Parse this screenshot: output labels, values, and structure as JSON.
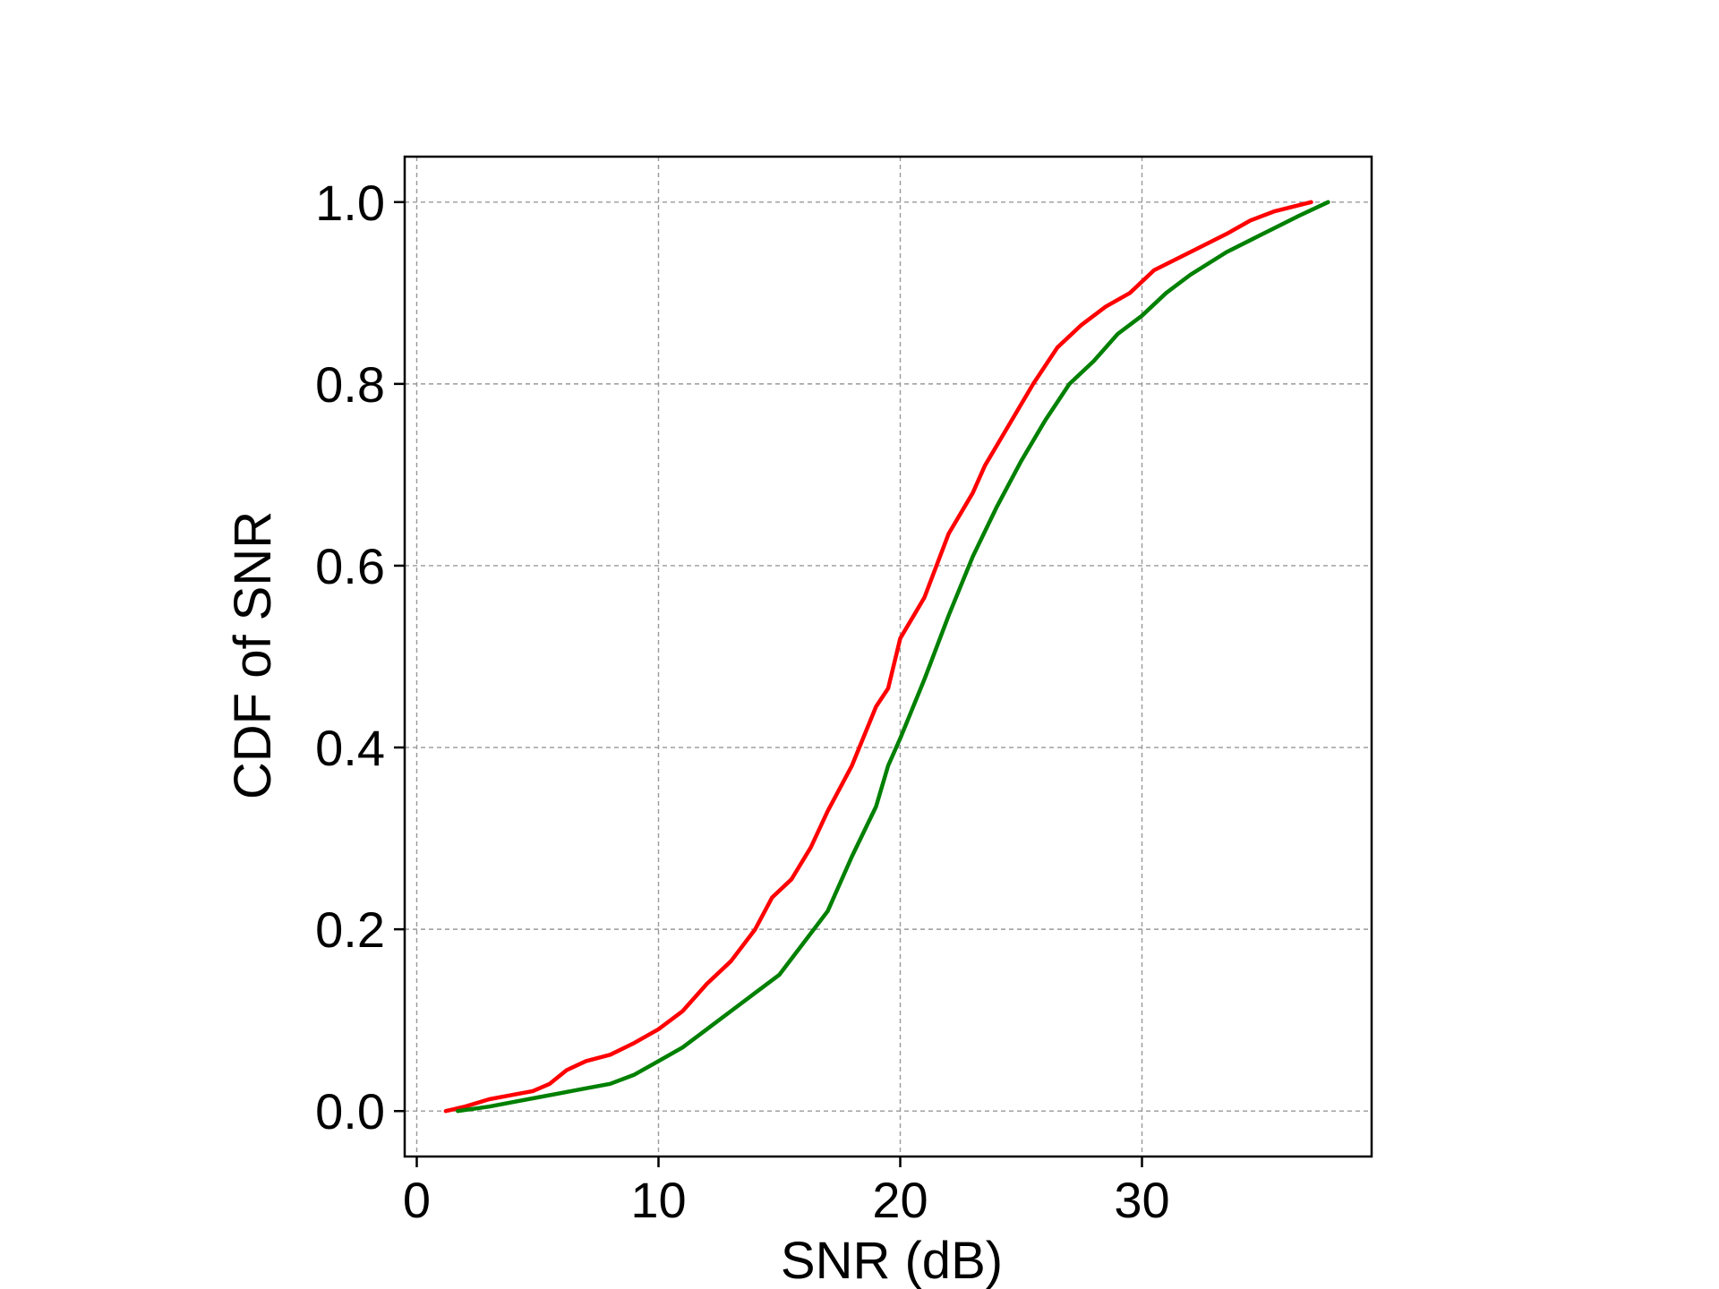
{
  "chart_data": {
    "type": "line",
    "title": "",
    "xlabel": "SNR (dB)",
    "ylabel": "CDF of SNR",
    "xlim": [
      -0.5,
      39.5
    ],
    "ylim": [
      -0.05,
      1.05
    ],
    "xticks": [
      0,
      10,
      20,
      30
    ],
    "xtick_labels": [
      "0",
      "10",
      "20",
      "30"
    ],
    "yticks": [
      0.0,
      0.2,
      0.4,
      0.6,
      0.8,
      1.0
    ],
    "ytick_labels": [
      "0.0",
      "0.2",
      "0.4",
      "0.6",
      "0.8",
      "1.0"
    ],
    "grid": true,
    "legend": "none",
    "series": [
      {
        "color": "#ff0000",
        "x": [
          1.2,
          2.0,
          3.0,
          4.0,
          4.8,
          5.5,
          6.2,
          7.0,
          8.0,
          9.0,
          10.0,
          11.0,
          12.0,
          13.0,
          14.0,
          14.7,
          15.5,
          16.3,
          17.0,
          18.0,
          19.0,
          19.5,
          20.0,
          21.0,
          22.0,
          23.0,
          23.5,
          24.5,
          25.5,
          26.5,
          27.5,
          28.5,
          29.5,
          30.5,
          32.0,
          33.5,
          34.5,
          35.5,
          37.0
        ],
        "y": [
          0.0,
          0.005,
          0.013,
          0.018,
          0.022,
          0.03,
          0.045,
          0.055,
          0.062,
          0.075,
          0.09,
          0.11,
          0.14,
          0.165,
          0.2,
          0.235,
          0.255,
          0.29,
          0.33,
          0.38,
          0.445,
          0.465,
          0.52,
          0.565,
          0.635,
          0.68,
          0.71,
          0.755,
          0.8,
          0.84,
          0.865,
          0.885,
          0.9,
          0.925,
          0.945,
          0.965,
          0.98,
          0.99,
          1.0
        ]
      },
      {
        "color": "#008000",
        "x": [
          1.7,
          3.0,
          4.0,
          5.0,
          6.0,
          7.0,
          8.0,
          9.0,
          10.0,
          11.0,
          12.0,
          13.0,
          14.0,
          15.0,
          16.0,
          17.0,
          18.0,
          19.0,
          19.5,
          20.0,
          21.0,
          22.0,
          23.0,
          24.0,
          25.0,
          26.0,
          27.0,
          28.0,
          29.0,
          30.0,
          31.0,
          32.0,
          33.5,
          35.0,
          36.5,
          37.7
        ],
        "y": [
          0.0,
          0.005,
          0.01,
          0.015,
          0.02,
          0.025,
          0.03,
          0.04,
          0.055,
          0.07,
          0.09,
          0.11,
          0.13,
          0.15,
          0.185,
          0.22,
          0.28,
          0.335,
          0.38,
          0.41,
          0.475,
          0.545,
          0.61,
          0.665,
          0.715,
          0.76,
          0.8,
          0.825,
          0.855,
          0.875,
          0.9,
          0.92,
          0.945,
          0.965,
          0.985,
          1.0
        ]
      }
    ]
  }
}
